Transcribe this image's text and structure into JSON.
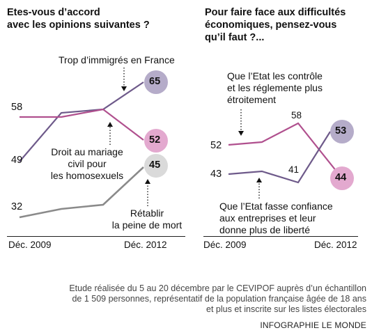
{
  "chart_data": [
    {
      "type": "line",
      "title": "Etes-vous d’accord\navec les opinions suivantes ?",
      "x": [
        "Déc. 2009",
        "",
        "",
        "Déc. 2012"
      ],
      "series": [
        {
          "name": "Trop d’immigrés en France",
          "values": [
            49,
            57,
            58,
            65
          ],
          "color": "#6e5a8a"
        },
        {
          "name": "Droit au mariage\ncivil pour\nles homosexuels",
          "values": [
            58,
            58,
            58,
            52
          ],
          "color": "#b0508e"
        },
        {
          "name": "Rétablir\nla peine de mort",
          "values": [
            32,
            34,
            35,
            45
          ],
          "color": "#8a8a8a"
        }
      ]
    },
    {
      "type": "line",
      "title": "Pour faire face aux difficultés\néconomiques, pensez-vous\nqu’il faut ?...",
      "x": [
        "Déc. 2009",
        "",
        "",
        "Déc. 2012"
      ],
      "series": [
        {
          "name": "Que l’Etat les contrôle\net les réglemente plus\nétroitement",
          "values": [
            52,
            52.5,
            58,
            44
          ],
          "color": "#b0508e"
        },
        {
          "name": "Que l’Etat fasse confiance\naux entreprises et leur\ndonne plus de liberté",
          "values": [
            43,
            44,
            41,
            53
          ],
          "color": "#6e5a8a"
        }
      ]
    }
  ],
  "labels": {
    "left_start": [
      "58",
      "49",
      "32"
    ],
    "left_end": [
      "65",
      "52",
      "45"
    ],
    "right_start": [
      "52",
      "43"
    ],
    "right_mid": [
      "58",
      "41"
    ],
    "right_end": [
      "53",
      "44"
    ]
  },
  "footer": {
    "note": "Etude réalisée du 5 au 20 décembre par le CEVIPOF auprès d’un échantillon\nde 1 509 personnes, représentatif de la population française âgée de 18 ans\net plus et inscrite sur les listes électorales",
    "credit": "INFOGRAPHIE LE MONDE"
  }
}
